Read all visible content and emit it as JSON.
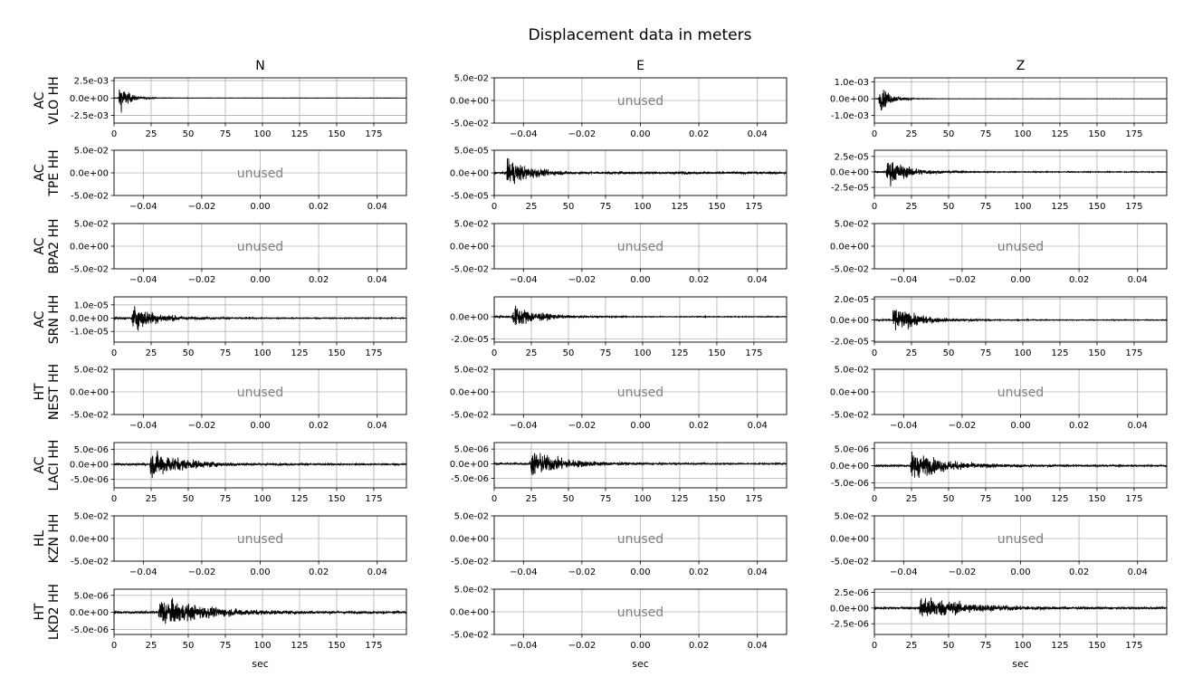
{
  "figure": {
    "title": "Displacement data in meters",
    "xlabel": "sec",
    "unused_label": "unused",
    "colors": {
      "trace": "#000000",
      "grid": "#b0b0b0",
      "unused_text": "#808080",
      "axis": "#000000"
    }
  },
  "chart_data": {
    "type": "line",
    "columns": [
      "N",
      "E",
      "Z"
    ],
    "rows": [
      {
        "label": [
          "AC",
          "VLO HH"
        ],
        "cells": [
          {
            "used": true,
            "yticks": [
              "2.5e-03",
              "0.0e+00",
              "-2.5e-03"
            ],
            "ytick_values": [
              0.0025,
              0,
              -0.0025
            ],
            "ylim": [
              -0.0036,
              0.0029
            ],
            "onset": 3,
            "peak": 0.0034,
            "decay": 6,
            "env": 0.00025,
            "tail": 3e-05
          },
          {
            "used": false
          },
          {
            "used": true,
            "yticks": [
              "1.0e-03",
              "0.0e+00",
              "-1.0e-03"
            ],
            "ytick_values": [
              0.001,
              0,
              -0.001
            ],
            "ylim": [
              -0.00145,
              0.00125
            ],
            "onset": 3,
            "peak": 0.0013,
            "decay": 7,
            "env": 0.0001,
            "tail": 1e-05
          }
        ]
      },
      {
        "label": [
          "AC",
          "TPE HH"
        ],
        "cells": [
          {
            "used": false
          },
          {
            "used": true,
            "yticks": [
              "5.0e-05",
              "0.0e+00",
              "-5.0e-05"
            ],
            "ytick_values": [
              5e-05,
              0,
              -5e-05
            ],
            "ylim": [
              -5e-05,
              5e-05
            ],
            "onset": 8,
            "peak": 4.8e-05,
            "decay": 14,
            "env": 1.2e-05,
            "tail": 3e-06
          },
          {
            "used": true,
            "yticks": [
              "2.5e-05",
              "0.0e+00",
              "-2.5e-05"
            ],
            "ytick_values": [
              2.5e-05,
              0,
              -2.5e-05
            ],
            "ylim": [
              -3.8e-05,
              3.5e-05
            ],
            "onset": 8,
            "peak": 3.3e-05,
            "decay": 14,
            "env": 8e-06,
            "tail": 1e-06
          }
        ]
      },
      {
        "label": [
          "AC",
          "BPA2 HH"
        ],
        "cells": [
          {
            "used": false
          },
          {
            "used": false
          },
          {
            "used": false
          }
        ]
      },
      {
        "label": [
          "AC",
          "SRN HH"
        ],
        "cells": [
          {
            "used": true,
            "yticks": [
              "1.0e-05",
              "0.0e+00",
              "-1.0e-05"
            ],
            "ytick_values": [
              1e-05,
              0,
              -1e-05
            ],
            "ylim": [
              -1.8e-05,
              1.6e-05
            ],
            "onset": 12,
            "peak": 1.5e-05,
            "decay": 16,
            "env": 4e-06,
            "tail": 5e-07
          },
          {
            "used": true,
            "yticks": [
              "0.0e+00",
              "-2.0e-05"
            ],
            "ytick_values": [
              0,
              -2e-05
            ],
            "ylim": [
              -2.3e-05,
              1.8e-05
            ],
            "onset": 12,
            "peak": 1.6e-05,
            "decay": 16,
            "env": 4e-06,
            "tail": 5e-07
          },
          {
            "used": true,
            "yticks": [
              "2.0e-05",
              "0.0e+00",
              "-2.0e-05"
            ],
            "ytick_values": [
              2e-05,
              0,
              -2e-05
            ],
            "ylim": [
              -2.1e-05,
              2.2e-05
            ],
            "onset": 12,
            "peak": 2e-05,
            "decay": 16,
            "env": 4e-06,
            "tail": 5e-07
          }
        ]
      },
      {
        "label": [
          "HT",
          "NEST HH"
        ],
        "cells": [
          {
            "used": false
          },
          {
            "used": false
          },
          {
            "used": false
          }
        ]
      },
      {
        "label": [
          "AC",
          "LACI HH"
        ],
        "cells": [
          {
            "used": true,
            "yticks": [
              "5.0e-06",
              "0.0e+00",
              "-5.0e-06"
            ],
            "ytick_values": [
              5e-06,
              0,
              -5e-06
            ],
            "ylim": [
              -7.8e-06,
              7.2e-06
            ],
            "onset": 24,
            "peak": 6.8e-06,
            "decay": 22,
            "env": 1.8e-06,
            "tail": 3e-07
          },
          {
            "used": true,
            "yticks": [
              "5.0e-06",
              "0.0e+00",
              "-5.0e-06"
            ],
            "ytick_values": [
              5e-06,
              0,
              -5e-06
            ],
            "ylim": [
              -8.2e-06,
              7.2e-06
            ],
            "onset": 24,
            "peak": 6.8e-06,
            "decay": 22,
            "env": 1.8e-06,
            "tail": 3e-07
          },
          {
            "used": true,
            "yticks": [
              "5.0e-06",
              "0.0e+00",
              "-5.0e-06"
            ],
            "ytick_values": [
              5e-06,
              0,
              -5e-06
            ],
            "ylim": [
              -6.5e-06,
              6.8e-06
            ],
            "onset": 24,
            "peak": 6.2e-06,
            "decay": 22,
            "env": 1.6e-06,
            "tail": 3e-07
          }
        ]
      },
      {
        "label": [
          "HL",
          "KZN HH"
        ],
        "cells": [
          {
            "used": false
          },
          {
            "used": false
          },
          {
            "used": false
          }
        ]
      },
      {
        "label": [
          "HT",
          "LKD2 HH"
        ],
        "cells": [
          {
            "used": true,
            "yticks": [
              "5.0e-06",
              "0.0e+00",
              "-5.0e-06"
            ],
            "ytick_values": [
              5e-06,
              0,
              -5e-06
            ],
            "ylim": [
              -6.5e-06,
              6.8e-06
            ],
            "onset": 30,
            "peak": 6.2e-06,
            "decay": 30,
            "env": 1.8e-06,
            "tail": 4e-07
          },
          {
            "used": false
          },
          {
            "used": true,
            "yticks": [
              "2.5e-06",
              "0.0e+00",
              "-2.5e-06"
            ],
            "ytick_values": [
              2.5e-06,
              0,
              -2.5e-06
            ],
            "ylim": [
              -4.2e-06,
              3e-06
            ],
            "onset": 30,
            "peak": 2.9e-06,
            "decay": 30,
            "env": 9e-07,
            "tail": 2e-07
          }
        ]
      }
    ],
    "used_axis": {
      "xlim": [
        0,
        197
      ],
      "xticks": [
        0,
        25,
        50,
        75,
        100,
        125,
        150,
        175
      ]
    },
    "unused_axis": {
      "xlim": [
        -0.05,
        0.05
      ],
      "xticks": [
        -0.04,
        -0.02,
        0,
        0.02,
        0.04
      ],
      "xtick_labels": [
        "−0.04",
        "−0.02",
        "0.00",
        "0.02",
        "0.04"
      ],
      "ylim": [
        -0.05,
        0.05
      ],
      "yticks": [
        "5.0e-02",
        "0.0e+00",
        "-5.0e-02"
      ],
      "ytick_values": [
        0.05,
        0,
        -0.05
      ]
    },
    "grid": true
  }
}
